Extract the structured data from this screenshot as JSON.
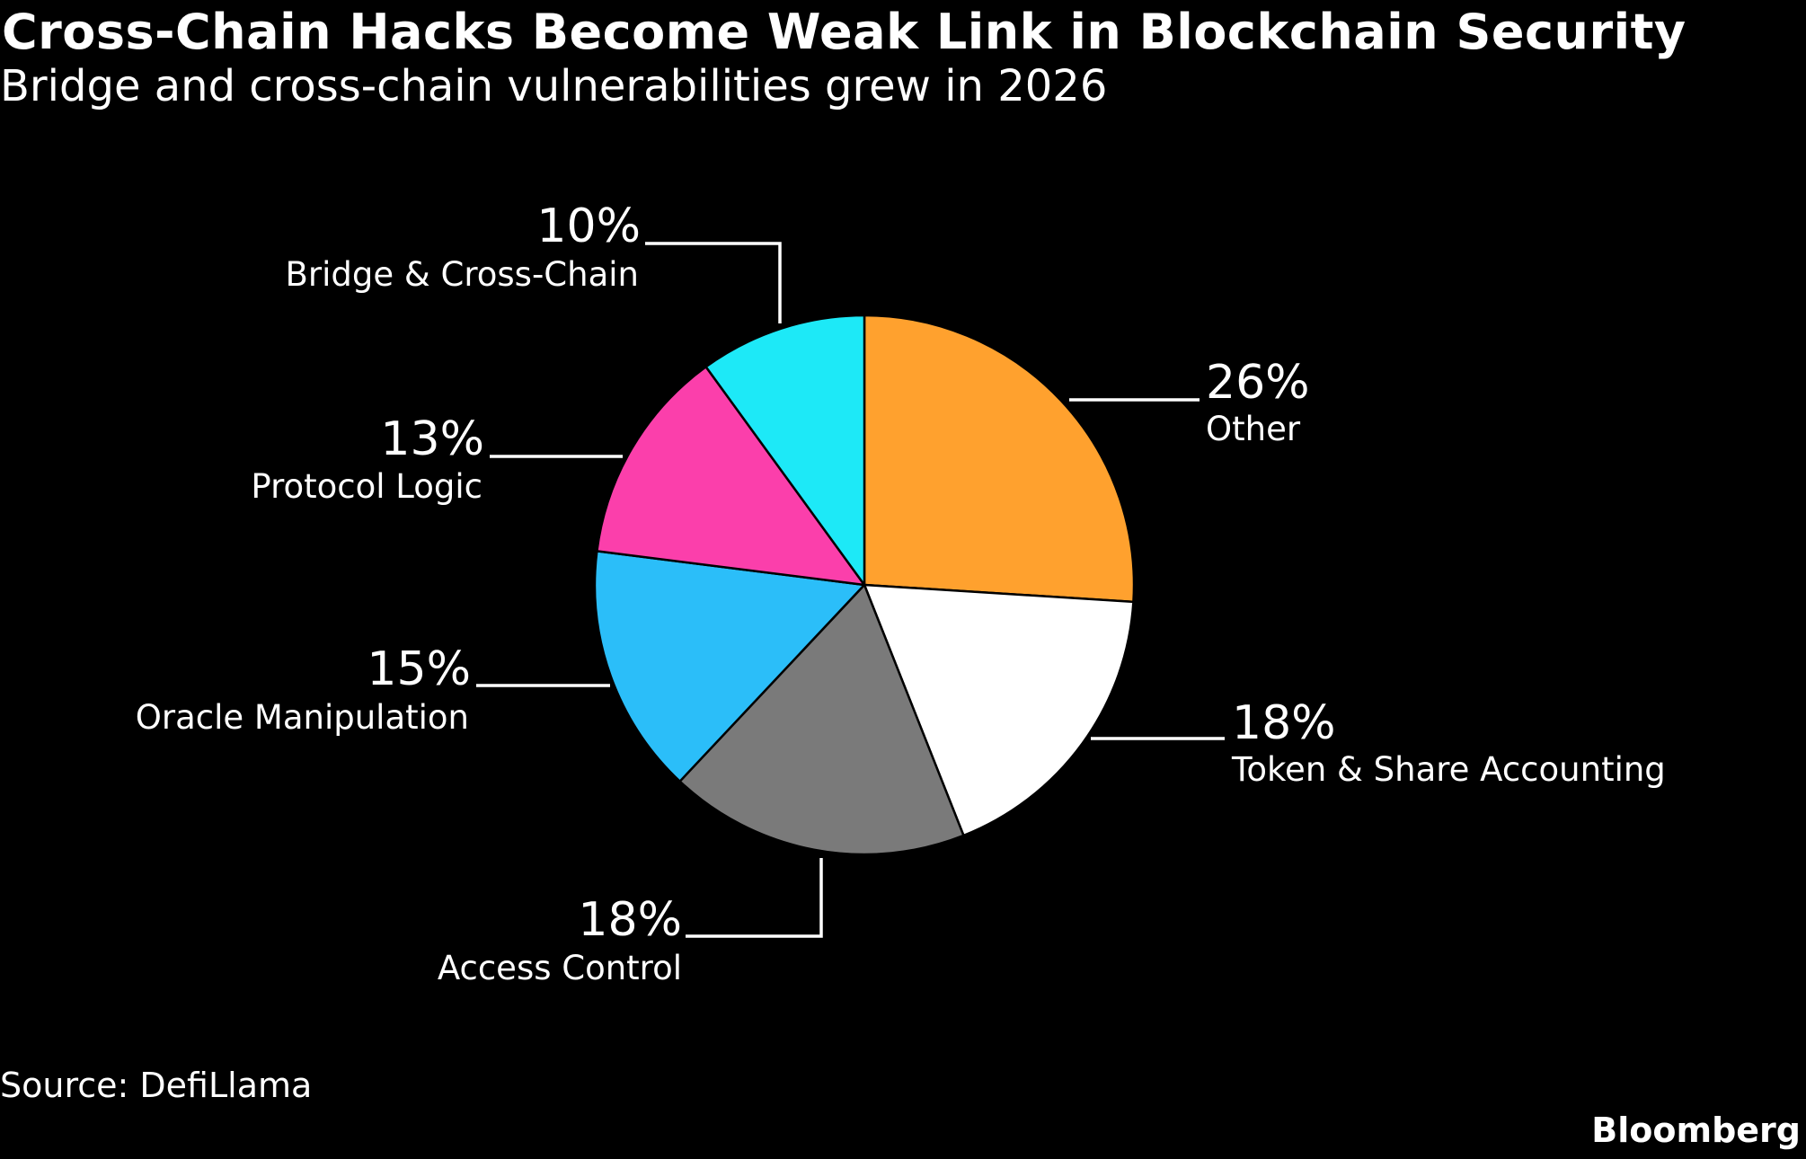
{
  "header": {
    "title": "Cross-Chain Hacks Become Weak Link in Blockchain Security",
    "subtitle": "Bridge and cross-chain vulnerabilities grew in 2026"
  },
  "footer": {
    "source": "Source: DefiLlama",
    "brand": "Bloomberg"
  },
  "chart_data": {
    "type": "pie",
    "title": "Cross-Chain Hacks Become Weak Link in Blockchain Security",
    "subtitle": "Bridge and cross-chain vulnerabilities grew in 2026",
    "start": "12 o'clock",
    "direction": "clockwise",
    "slices": [
      {
        "label": "Other",
        "value": 26,
        "value_label": "26%",
        "color": "#ffa12e"
      },
      {
        "label": "Token & Share Accounting",
        "value": 18,
        "value_label": "18%",
        "color": "#ffffff"
      },
      {
        "label": "Access Control",
        "value": 18,
        "value_label": "18%",
        "color": "#7a7a7a"
      },
      {
        "label": "Oracle Manipulation",
        "value": 15,
        "value_label": "15%",
        "color": "#2bbef9"
      },
      {
        "label": "Protocol Logic",
        "value": 13,
        "value_label": "13%",
        "color": "#fb3fab"
      },
      {
        "label": "Bridge & Cross-Chain",
        "value": 10,
        "value_label": "10%",
        "color": "#1de9f7"
      }
    ]
  }
}
